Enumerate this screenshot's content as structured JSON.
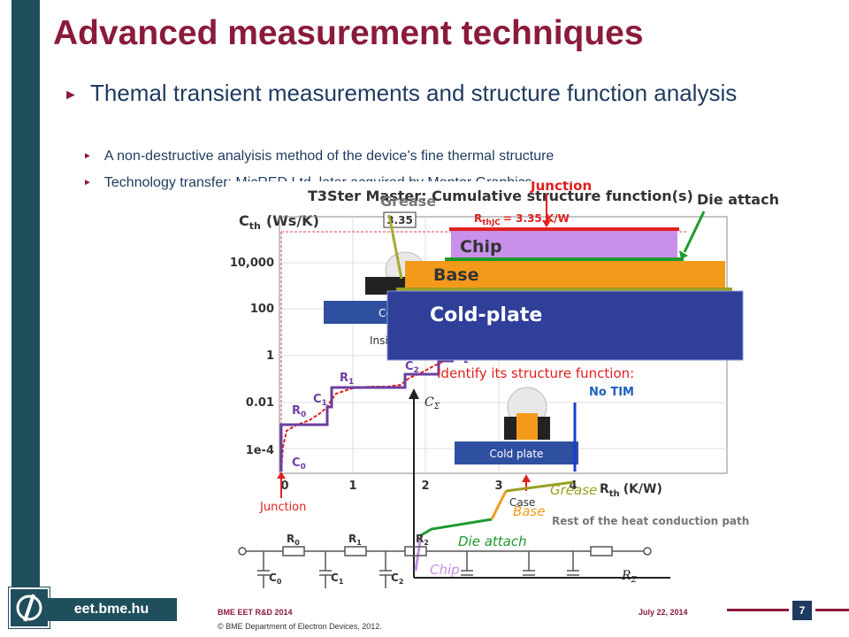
{
  "slide": {
    "title": "Advanced measurement techniques",
    "bullet_main": "Themal transient measurements and structure function analysis",
    "sub_bullets": [
      "A non-destructive analyisis method of the device’s fine thermal structure",
      "Technology transfer: MicRED Ltd, later acquired by Mentor Graphics"
    ]
  },
  "figure": {
    "chart_title": "T3Ster Master: Cumulative structure function(s)",
    "y_axis_label": "C",
    "y_axis_sub": "th",
    "y_axis_unit": "(Ws/K)",
    "y_ticks": [
      "10,000",
      "100",
      "1",
      "0.01",
      "1e-4"
    ],
    "x_ticks": [
      "0",
      "1",
      "2",
      "3",
      "4"
    ],
    "x_axis_label": "R",
    "x_axis_sub": "th",
    "x_axis_unit": "(K/W)",
    "rthjc_label": "R",
    "rthjc_sub": "thJC",
    "rthjc_value": "= 3.35 K/W",
    "val_335": "3.35",
    "labels": {
      "grease": "Grease",
      "junction": "Junction",
      "die_attach": "Die attach",
      "chip": "Chip",
      "base": "Base",
      "cold_plate": "Cold-plate",
      "cold_plate_small": "Cold plate",
      "inside": "Inside",
      "identify": "Identify its structure function:",
      "no_tim": "No TIM",
      "case": "Case",
      "junction_bottom": "Junction",
      "rest": "Rest of the heat conduction path",
      "c_sigma": "CΣ",
      "r_sigma": "RΣ",
      "c_sigma_sym": "C",
      "r_sigma_sym": "R",
      "sigma": "Σ",
      "co_trunc": "Co",
      "r0": "R",
      "r1": "R",
      "r2": "R",
      "c0": "C",
      "c1": "C",
      "c2": "C",
      "sub0": "0",
      "sub1": "1",
      "sub2": "2",
      "chip_lower": "Chip",
      "die_attach_lower": "Die attach",
      "base_lower": "Base",
      "grease_lower": "Grease"
    },
    "colors": {
      "chip": "#c890e8",
      "base": "#f39a1b",
      "cold_plate": "#2f3f9a",
      "die_attach": "#1e9a2e",
      "junction_red": "#e02020",
      "curve_purple": "#6b3fa0"
    }
  },
  "footer": {
    "site": "eet.bme.hu",
    "dept_line": "BME EET R&D 2014",
    "copyright": "© BME Department of Electron Devices, 2012.",
    "date": "July 22, 2014",
    "page": "7"
  }
}
